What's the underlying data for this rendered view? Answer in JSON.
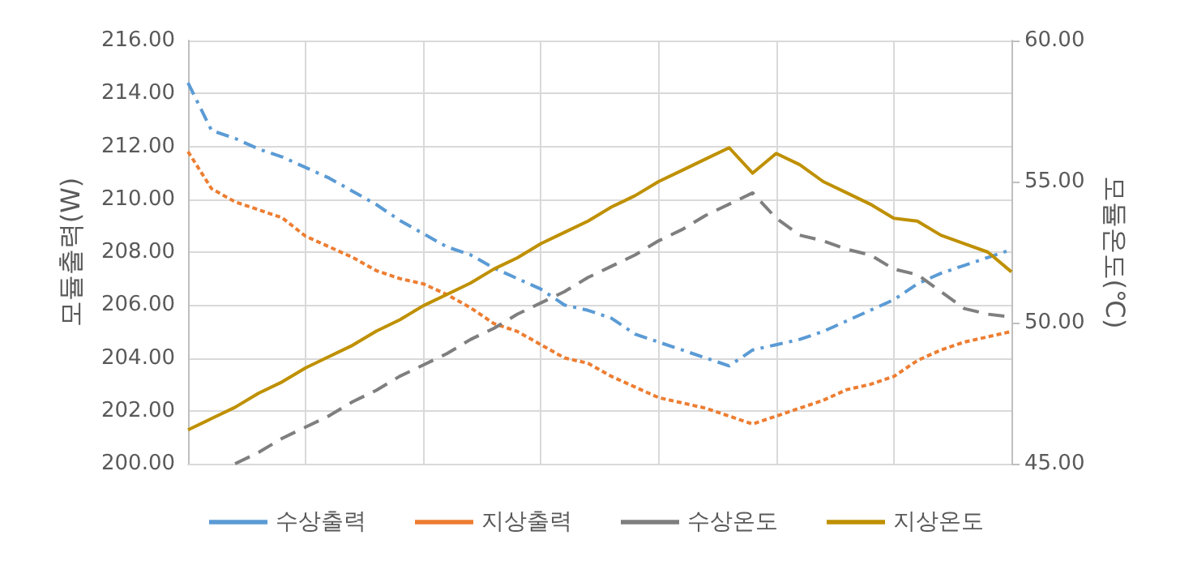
{
  "chart_data": {
    "type": "line",
    "ylabel": "모듈출력(W)",
    "y2label": "모듈온도(℃)",
    "categories": [
      null,
      null,
      null,
      null,
      null,
      null,
      null,
      null,
      null,
      null,
      null,
      null,
      null,
      null,
      null,
      null,
      null,
      null,
      null,
      null,
      null,
      null,
      null,
      null,
      null,
      null,
      null,
      null,
      null,
      null,
      null,
      null,
      null,
      null,
      null,
      null
    ],
    "ylim": [
      200,
      216
    ],
    "yticks": [
      {
        "value": 200,
        "label": "200.00"
      },
      {
        "value": 202,
        "label": "202.00"
      },
      {
        "value": 204,
        "label": "204.00"
      },
      {
        "value": 206,
        "label": "206.00"
      },
      {
        "value": 208,
        "label": "208.00"
      },
      {
        "value": 210,
        "label": "210.00"
      },
      {
        "value": 212,
        "label": "212.00"
      },
      {
        "value": 214,
        "label": "214.00"
      },
      {
        "value": 216,
        "label": "216.00"
      }
    ],
    "y2lim": [
      45,
      60
    ],
    "y2ticks": [
      {
        "value": 45,
        "label": "45.00"
      },
      {
        "value": 50,
        "label": "50.00"
      },
      {
        "value": 55,
        "label": "55.00"
      },
      {
        "value": 60,
        "label": "60.00"
      }
    ],
    "grid": true,
    "legend": "bottom",
    "marker": "none",
    "series": [
      {
        "name": "수상출력",
        "color": "#5b9bd5",
        "line_style": "dashdot",
        "values": [
          214.4,
          212.6,
          212.3,
          211.9,
          211.6,
          211.2,
          210.8,
          210.3,
          209.8,
          209.2,
          208.7,
          208.2,
          207.9,
          207.4,
          207.0,
          206.6,
          206.0,
          205.8,
          205.5,
          204.9,
          204.6,
          204.3,
          204.0,
          203.7,
          204.3,
          204.5,
          204.7,
          205.0,
          205.4,
          205.8,
          206.2,
          206.8,
          207.2,
          207.5,
          207.8,
          208.1
        ]
      },
      {
        "name": "지상출력",
        "color": "#ed7d31",
        "line_style": "dotted",
        "values": [
          211.8,
          210.4,
          209.9,
          209.6,
          209.3,
          208.6,
          208.2,
          207.8,
          207.3,
          207.0,
          206.8,
          206.4,
          205.9,
          205.3,
          205.0,
          204.5,
          204.0,
          203.8,
          203.3,
          202.9,
          202.5,
          202.3,
          202.1,
          201.8,
          201.5,
          201.8,
          202.1,
          202.4,
          202.8,
          203.0,
          203.3,
          203.9,
          204.3,
          204.6,
          204.8,
          205.0
        ]
      },
      {
        "name": "수상온도",
        "color": "#7f7f7f",
        "line_style": "dashed",
        "axis": "y2",
        "values": [
          null,
          null,
          45.0,
          45.4,
          45.9,
          46.3,
          46.7,
          47.2,
          47.6,
          48.1,
          48.5,
          48.9,
          49.4,
          49.8,
          50.3,
          50.7,
          51.1,
          51.6,
          52.0,
          52.4,
          52.9,
          53.3,
          53.8,
          54.2,
          54.6,
          53.7,
          53.1,
          52.9,
          52.6,
          52.4,
          51.9,
          51.7,
          51.1,
          50.5,
          50.3,
          50.2
        ]
      },
      {
        "name": "지상온도",
        "color": "#bf9000",
        "line_style": "solid",
        "axis": "y2",
        "values": [
          46.2,
          46.6,
          47.0,
          47.5,
          47.9,
          48.4,
          48.8,
          49.2,
          49.7,
          50.1,
          50.6,
          51.0,
          51.4,
          51.9,
          52.3,
          52.8,
          53.2,
          53.6,
          54.1,
          54.5,
          55.0,
          55.4,
          55.8,
          56.2,
          55.3,
          56.0,
          55.6,
          55.0,
          54.6,
          54.2,
          53.7,
          53.6,
          53.1,
          52.8,
          52.5,
          51.8
        ]
      }
    ]
  }
}
